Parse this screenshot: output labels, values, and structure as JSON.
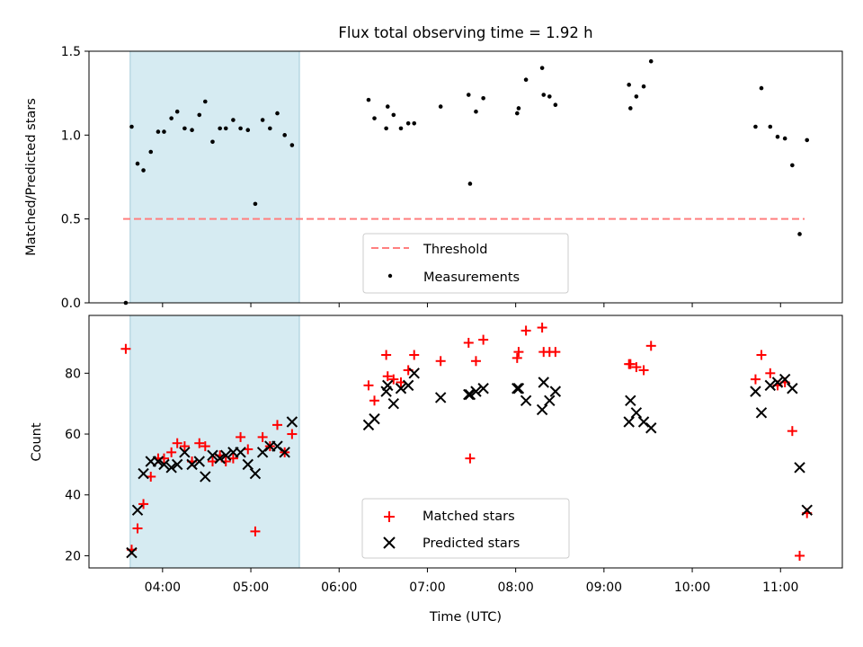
{
  "chart_data": [
    {
      "type": "scatter",
      "title": "Flux total observing time = 1.92 h",
      "ylabel": "Matched/Predicted stars",
      "xlabel": "",
      "ylim": [
        0,
        1.5
      ],
      "yticks": [
        "0.0",
        "0.5",
        "1.0",
        "1.5"
      ],
      "threshold": 0.5,
      "threshold_color": "#ff7f7f",
      "shaded_interval": [
        "03:38",
        "05:33"
      ],
      "shade_color": "#add8e6",
      "legend": {
        "placement": "bottom-center",
        "entries": [
          "Threshold",
          "Measurements"
        ]
      },
      "series": [
        {
          "name": "Measurements",
          "color": "#000000",
          "x": [
            "03:35",
            "03:39",
            "03:43",
            "03:47",
            "03:52",
            "03:57",
            "04:01",
            "04:06",
            "04:10",
            "04:15",
            "04:20",
            "04:25",
            "04:29",
            "04:34",
            "04:39",
            "04:43",
            "04:48",
            "04:53",
            "04:58",
            "05:03",
            "05:08",
            "05:13",
            "05:18",
            "05:23",
            "05:28",
            "05:33",
            "06:20",
            "06:24",
            "06:32",
            "06:33",
            "06:37",
            "06:42",
            "06:47",
            "06:51",
            "07:09",
            "07:28",
            "07:29",
            "07:33",
            "07:38",
            "08:01",
            "08:02",
            "08:07",
            "08:18",
            "08:19",
            "08:23",
            "08:27",
            "09:17",
            "09:18",
            "09:22",
            "09:27",
            "09:32",
            "10:43",
            "10:47",
            "10:53",
            "10:58",
            "11:03",
            "11:08",
            "11:13",
            "11:18"
          ],
          "y": [
            0.0,
            1.05,
            0.83,
            0.79,
            0.9,
            1.02,
            1.02,
            1.1,
            1.14,
            1.04,
            1.03,
            1.12,
            1.2,
            0.96,
            1.04,
            1.04,
            1.09,
            1.04,
            1.03,
            0.59,
            1.09,
            1.04,
            1.13,
            1.0,
            0.94,
            null,
            1.21,
            1.1,
            1.04,
            1.17,
            1.12,
            1.04,
            1.07,
            1.07,
            1.17,
            1.24,
            0.71,
            1.14,
            1.22,
            1.13,
            1.16,
            1.33,
            1.4,
            1.24,
            1.23,
            1.18,
            1.3,
            1.16,
            1.23,
            1.29,
            1.44,
            1.05,
            1.28,
            1.05,
            0.99,
            0.98,
            0.82,
            0.41,
            0.97
          ]
        }
      ]
    },
    {
      "type": "scatter",
      "xlabel": "Time (UTC)",
      "ylabel": "Count",
      "ylim": [
        16,
        99
      ],
      "yticks": [
        "20",
        "40",
        "60",
        "80"
      ],
      "xticks": [
        "04:00",
        "05:00",
        "06:00",
        "07:00",
        "08:00",
        "09:00",
        "10:00",
        "11:00"
      ],
      "xlim": [
        "03:10",
        "11:42"
      ],
      "shaded_interval": [
        "03:38",
        "05:33"
      ],
      "shade_color": "#add8e6",
      "legend": {
        "placement": "bottom-center",
        "entries": [
          "Matched stars",
          "Predicted stars"
        ]
      },
      "series": [
        {
          "name": "Matched stars",
          "marker": "plus",
          "color": "#ff0000",
          "x": [
            "03:35",
            "03:39",
            "03:43",
            "03:47",
            "03:52",
            "03:57",
            "04:01",
            "04:06",
            "04:10",
            "04:15",
            "04:20",
            "04:25",
            "04:29",
            "04:34",
            "04:39",
            "04:43",
            "04:48",
            "04:53",
            "04:58",
            "05:03",
            "05:08",
            "05:13",
            "05:18",
            "05:23",
            "05:28",
            "05:33",
            "06:20",
            "06:24",
            "06:32",
            "06:33",
            "06:37",
            "06:42",
            "06:47",
            "06:51",
            "07:09",
            "07:28",
            "07:29",
            "07:33",
            "07:38",
            "08:01",
            "08:02",
            "08:07",
            "08:18",
            "08:19",
            "08:23",
            "08:27",
            "09:17",
            "09:18",
            "09:22",
            "09:27",
            "09:32",
            "10:43",
            "10:47",
            "10:53",
            "10:58",
            "11:03",
            "11:08",
            "11:13",
            "11:18"
          ],
          "y": [
            88,
            22,
            29,
            37,
            46,
            52,
            52,
            54,
            57,
            56,
            51,
            57,
            56,
            51,
            53,
            51,
            52,
            59,
            55,
            28,
            59,
            56,
            63,
            54,
            60,
            null,
            76,
            71,
            86,
            79,
            78,
            77,
            81,
            86,
            84,
            90,
            52,
            84,
            91,
            85,
            87,
            94,
            95,
            87,
            87,
            87,
            83,
            83,
            82,
            81,
            89,
            78,
            86,
            80,
            76,
            77,
            61,
            20,
            34
          ]
        },
        {
          "name": "Predicted stars",
          "marker": "x",
          "color": "#000000",
          "x": [
            "03:35",
            "03:39",
            "03:43",
            "03:47",
            "03:52",
            "03:57",
            "04:01",
            "04:06",
            "04:10",
            "04:15",
            "04:20",
            "04:25",
            "04:29",
            "04:34",
            "04:39",
            "04:43",
            "04:48",
            "04:53",
            "04:58",
            "05:03",
            "05:08",
            "05:13",
            "05:18",
            "05:23",
            "05:28",
            "05:33",
            "06:20",
            "06:24",
            "06:32",
            "06:33",
            "06:37",
            "06:42",
            "06:47",
            "06:51",
            "07:09",
            "07:28",
            "07:29",
            "07:33",
            "07:38",
            "08:01",
            "08:02",
            "08:07",
            "08:18",
            "08:19",
            "08:23",
            "08:27",
            "09:17",
            "09:18",
            "09:22",
            "09:27",
            "09:32",
            "10:43",
            "10:47",
            "10:53",
            "10:58",
            "11:03",
            "11:08",
            "11:13",
            "11:18"
          ],
          "y": [
            null,
            21,
            35,
            47,
            51,
            51,
            50,
            49,
            50,
            54,
            50,
            51,
            46,
            53,
            52,
            53,
            54,
            54,
            50,
            47,
            54,
            56,
            56,
            54,
            64,
            null,
            63,
            65,
            74,
            76,
            70,
            75,
            76,
            80,
            72,
            73,
            73,
            74,
            75,
            75,
            75,
            71,
            68,
            77,
            71,
            74,
            64,
            71,
            67,
            64,
            62,
            74,
            67,
            76,
            77,
            78,
            75,
            49,
            35
          ]
        }
      ]
    }
  ]
}
